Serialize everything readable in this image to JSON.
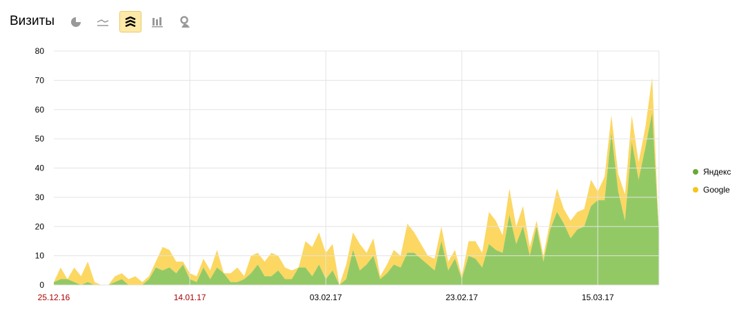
{
  "header": {
    "title": "Визиты"
  },
  "toolbar": {
    "buttons": [
      {
        "icon": "pie-chart-icon",
        "active": false
      },
      {
        "icon": "line-chart-icon",
        "active": false
      },
      {
        "icon": "area-stacked-icon",
        "active": true
      },
      {
        "icon": "bar-chart-icon",
        "active": false
      },
      {
        "icon": "map-icon",
        "active": false
      }
    ]
  },
  "chart_data": {
    "type": "area",
    "stacked": true,
    "ylim": [
      0,
      80
    ],
    "yticks": [
      0,
      10,
      20,
      30,
      40,
      50,
      60,
      70,
      80
    ],
    "xticks": [
      {
        "label": "25.12.16",
        "index": 0,
        "weekend": true
      },
      {
        "label": "14.01.17",
        "index": 20,
        "weekend": true
      },
      {
        "label": "03.02.17",
        "index": 40,
        "weekend": false
      },
      {
        "label": "23.02.17",
        "index": 60,
        "weekend": false
      },
      {
        "label": "15.03.17",
        "index": 80,
        "weekend": false
      }
    ],
    "grid": true,
    "legend_position": "right",
    "series": [
      {
        "name": "Яндекс",
        "color": "#93c965",
        "values": [
          1,
          2,
          2,
          1,
          0,
          1,
          0,
          0,
          0,
          1,
          2,
          0,
          0,
          0,
          2,
          6,
          5,
          6,
          4,
          7,
          2,
          1,
          6,
          2,
          6,
          4,
          1,
          1,
          2,
          4,
          7,
          3,
          3,
          5,
          2,
          2,
          6,
          6,
          3,
          7,
          2,
          5,
          0,
          2,
          12,
          5,
          7,
          10,
          2,
          4,
          7,
          6,
          11,
          11,
          9,
          7,
          5,
          15,
          5,
          9,
          2,
          10,
          9,
          6,
          14,
          12,
          11,
          24,
          14,
          20,
          10,
          20,
          8,
          19,
          25,
          21,
          16,
          19,
          20,
          27,
          29,
          29,
          52,
          32,
          22,
          49,
          36,
          47,
          59,
          17
        ]
      },
      {
        "name": "Google",
        "color": "#fcd762",
        "values": [
          0,
          4,
          0,
          5,
          3,
          7,
          1,
          0,
          0,
          2,
          2,
          2,
          3,
          1,
          1,
          2,
          8,
          6,
          4,
          1,
          2,
          2,
          3,
          3,
          6,
          0,
          3,
          5,
          1,
          6,
          4,
          5,
          8,
          5,
          4,
          3,
          0,
          9,
          10,
          11,
          9,
          9,
          0,
          5,
          6,
          9,
          4,
          6,
          1,
          3,
          5,
          4,
          10,
          7,
          5,
          3,
          4,
          5,
          3,
          3,
          1,
          5,
          6,
          5,
          11,
          10,
          6,
          9,
          6,
          7,
          3,
          2,
          2,
          3,
          8,
          5,
          6,
          6,
          6,
          9,
          3,
          8,
          6,
          6,
          9,
          9,
          6,
          7,
          12,
          0
        ]
      }
    ]
  }
}
